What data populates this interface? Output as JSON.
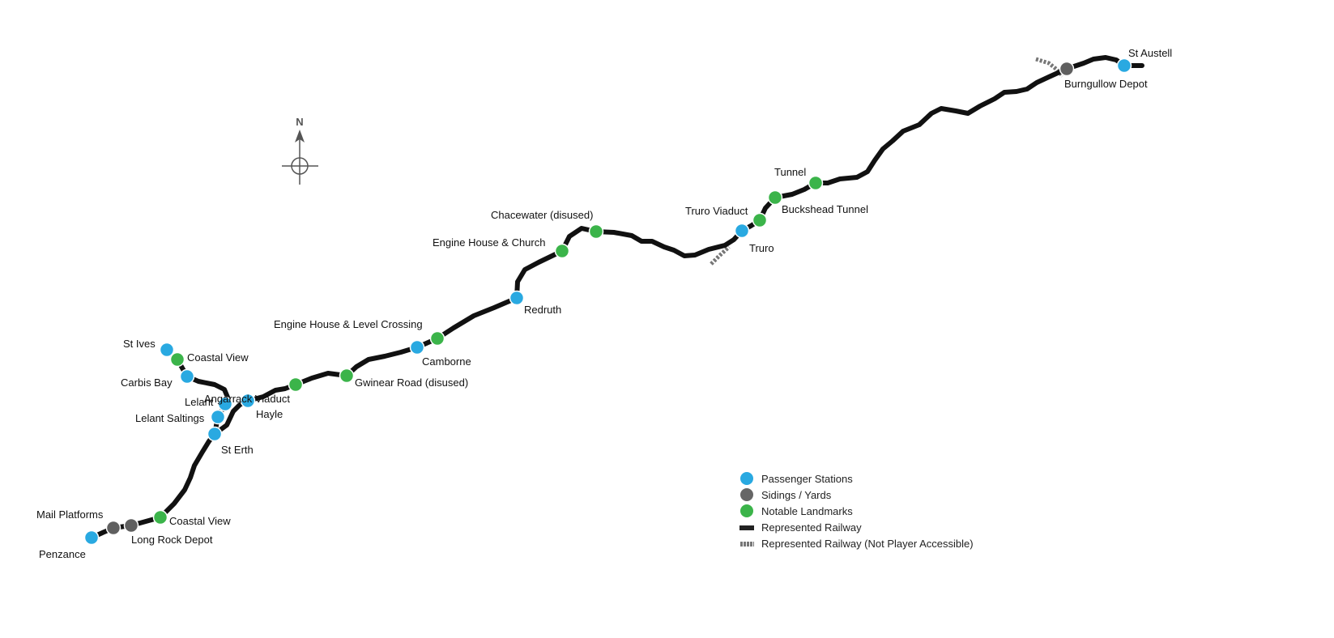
{
  "colors": {
    "passenger": "#29a9e1",
    "sidings": "#5f5f5f",
    "landmark": "#3bb44a",
    "railway": "#111111",
    "inaccessible": "#777777"
  },
  "compass": {
    "north_label": "N"
  },
  "stations": [
    {
      "name": "Penzance",
      "type": "passenger"
    },
    {
      "name": "Mail Platforms",
      "type": "sidings"
    },
    {
      "name": "Long Rock Depot",
      "type": "sidings"
    },
    {
      "name": "Coastal View",
      "type": "landmark"
    },
    {
      "name": "St Erth",
      "type": "passenger"
    },
    {
      "name": "Lelant Saltings",
      "type": "passenger"
    },
    {
      "name": "Lelant",
      "type": "passenger"
    },
    {
      "name": "Carbis Bay",
      "type": "passenger"
    },
    {
      "name": "Coastal View",
      "type": "landmark"
    },
    {
      "name": "St Ives",
      "type": "passenger"
    },
    {
      "name": "Hayle",
      "type": "passenger"
    },
    {
      "name": "Angarrack Viaduct",
      "type": "landmark"
    },
    {
      "name": "Gwinear Road (disused)",
      "type": "landmark"
    },
    {
      "name": "Camborne",
      "type": "passenger"
    },
    {
      "name": "Engine House & Level Crossing",
      "type": "landmark"
    },
    {
      "name": "Redruth",
      "type": "passenger"
    },
    {
      "name": "Engine House & Church",
      "type": "landmark"
    },
    {
      "name": "Chacewater (disused)",
      "type": "landmark"
    },
    {
      "name": "Truro",
      "type": "passenger"
    },
    {
      "name": "Truro Viaduct",
      "type": "landmark"
    },
    {
      "name": "Buckshead Tunnel",
      "type": "landmark"
    },
    {
      "name": "Tunnel",
      "type": "landmark"
    },
    {
      "name": "Burngullow Depot",
      "type": "sidings"
    },
    {
      "name": "St Austell",
      "type": "passenger"
    }
  ],
  "legend": [
    {
      "label": "Passenger Stations",
      "symbol": "passenger"
    },
    {
      "label": "Sidings / Yards",
      "symbol": "sidings"
    },
    {
      "label": "Notable Landmarks",
      "symbol": "landmark"
    },
    {
      "label": "Represented Railway",
      "symbol": "railway"
    },
    {
      "label": "Represented Railway (Not Player Accessible)",
      "symbol": "inaccessible"
    }
  ]
}
